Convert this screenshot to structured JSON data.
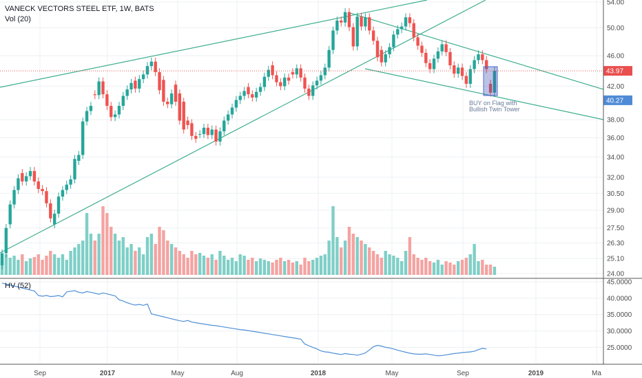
{
  "title": "VANECK VECTORS STEEL ETF, 1W, BATS",
  "vol_label": "Vol (20)",
  "hv_label": "HV (52)",
  "annotation": [
    "BUY on Flag with",
    "Bullish Twin Tower"
  ],
  "price_tag": "43.97",
  "target_tag": "40.27",
  "colors": {
    "up": "#26a69a",
    "down": "#ef5350",
    "vol_up": "#7fcfc7",
    "vol_down": "#f4a3a1",
    "trend": "#3fae8f",
    "hv": "#4e8fd6",
    "price_line": "#e94f4f",
    "target_box": "#4f8ad6"
  },
  "chart_data": [
    {
      "type": "candlestick",
      "title": "VANECK VECTORS STEEL ETF, 1W, BATS",
      "y_axis_ticks": [
        "54.00",
        "50.00",
        "46.00",
        "42.00",
        "38.00",
        "36.00",
        "34.00",
        "32.00",
        "30.50",
        "29.00",
        "27.50",
        "26.30",
        "25.10",
        "24.00"
      ],
      "x_axis_ticks": [
        "Sep",
        "2017",
        "May",
        "Aug",
        "2018",
        "May",
        "Sep",
        "2019",
        "Ma"
      ],
      "ylim": [
        24.0,
        54.0
      ],
      "scale": "log",
      "grid": true,
      "last_price": 43.97,
      "target_price": 40.27,
      "candles_close": [
        25.5,
        27.5,
        29.5,
        30.8,
        31.9,
        31.6,
        32.1,
        32.6,
        31.6,
        30.9,
        30.7,
        29.6,
        28.3,
        28.7,
        30.2,
        30.8,
        31.3,
        31.8,
        33.8,
        34.2,
        37.8,
        39.0,
        39.6,
        40.9,
        42.6,
        41.0,
        39.6,
        38.3,
        38.6,
        39.6,
        40.8,
        41.6,
        42.4,
        41.7,
        42.9,
        43.5,
        44.6,
        45.2,
        43.8,
        41.5,
        40.1,
        39.8,
        41.1,
        40.1,
        37.9,
        36.9,
        37.4,
        36.2,
        35.9,
        36.4,
        37.1,
        36.3,
        36.9,
        35.6,
        36.7,
        37.9,
        38.6,
        39.4,
        40.3,
        40.8,
        41.4,
        41.0,
        40.6,
        41.3,
        41.9,
        43.2,
        44.1,
        43.4,
        42.5,
        42.0,
        43.1,
        42.7,
        43.5,
        44.3,
        43.1,
        41.7,
        40.8,
        42.1,
        42.7,
        43.4,
        44.4,
        46.8,
        49.6,
        51.1,
        50.8,
        52.4,
        50.1,
        47.3,
        51.7,
        50.2,
        51.6,
        49.6,
        48.1,
        45.8,
        45.1,
        46.2,
        47.2,
        49.0,
        49.8,
        50.2,
        51.6,
        50.7,
        48.6,
        47.4,
        46.4,
        45.0,
        44.2,
        45.6,
        46.6,
        47.6,
        46.5,
        44.7,
        43.6,
        44.4,
        43.3,
        42.3,
        44.2,
        45.4,
        46.2,
        45.4,
        44.2,
        41.2,
        43.97
      ],
      "candles_open": [
        24.6,
        25.5,
        27.8,
        29.5,
        30.8,
        32.4,
        31.6,
        32.1,
        32.6,
        31.6,
        30.9,
        30.7,
        29.6,
        27.8,
        28.7,
        30.2,
        30.8,
        31.3,
        31.8,
        33.6,
        34.2,
        37.8,
        39.0,
        41.0,
        40.9,
        42.6,
        41.0,
        39.6,
        38.3,
        38.6,
        39.6,
        40.8,
        41.6,
        42.7,
        41.7,
        42.9,
        43.5,
        44.6,
        45.2,
        43.8,
        42.8,
        40.1,
        39.8,
        42.2,
        41.1,
        40.1,
        37.9,
        37.6,
        36.2,
        36.4,
        36.4,
        37.1,
        36.3,
        36.9,
        35.6,
        36.7,
        37.9,
        38.6,
        39.4,
        40.3,
        40.8,
        41.9,
        41.0,
        40.6,
        41.3,
        41.9,
        43.2,
        44.7,
        43.4,
        42.5,
        42.0,
        43.1,
        43.8,
        43.5,
        44.3,
        43.1,
        41.7,
        40.8,
        42.1,
        42.7,
        43.4,
        44.4,
        46.8,
        49.6,
        51.1,
        50.8,
        52.4,
        50.1,
        47.3,
        51.7,
        50.2,
        51.6,
        49.6,
        48.1,
        46.8,
        45.1,
        46.2,
        47.2,
        49.0,
        49.8,
        50.2,
        51.6,
        50.7,
        48.6,
        47.4,
        46.4,
        45.0,
        44.2,
        45.6,
        46.6,
        47.6,
        46.5,
        44.7,
        43.6,
        44.4,
        43.3,
        42.3,
        44.2,
        45.4,
        46.2,
        45.4,
        42.3,
        41.2
      ],
      "volume_relative": [
        0.2,
        0.3,
        0.25,
        0.28,
        0.22,
        0.3,
        0.2,
        0.24,
        0.26,
        0.3,
        0.22,
        0.28,
        0.35,
        0.3,
        0.25,
        0.3,
        0.22,
        0.35,
        0.4,
        0.45,
        0.5,
        0.9,
        0.6,
        0.5,
        0.6,
        1.0,
        0.9,
        0.7,
        0.6,
        0.5,
        0.55,
        0.4,
        0.45,
        0.35,
        0.4,
        0.3,
        0.55,
        0.6,
        0.45,
        0.7,
        0.65,
        0.5,
        0.45,
        0.4,
        0.35,
        0.3,
        0.25,
        0.35,
        0.3,
        0.32,
        0.28,
        0.25,
        0.3,
        0.22,
        0.35,
        0.28,
        0.22,
        0.25,
        0.2,
        0.3,
        0.28,
        0.22,
        0.25,
        0.2,
        0.24,
        0.22,
        0.2,
        0.18,
        0.22,
        0.25,
        0.2,
        0.22,
        0.18,
        0.2,
        0.15,
        0.25,
        0.2,
        0.22,
        0.25,
        0.28,
        0.3,
        0.5,
        1.0,
        0.55,
        0.4,
        0.5,
        0.7,
        0.6,
        0.55,
        0.5,
        0.45,
        0.4,
        0.35,
        0.3,
        0.25,
        0.35,
        0.3,
        0.28,
        0.25,
        0.2,
        0.35,
        0.55,
        0.3,
        0.25,
        0.22,
        0.25,
        0.2,
        0.18,
        0.22,
        0.15,
        0.2,
        0.18,
        0.15,
        0.2,
        0.22,
        0.25,
        0.3,
        0.45,
        0.2,
        0.22,
        0.15,
        0.15,
        0.12
      ]
    },
    {
      "type": "line",
      "title": "HV (52)",
      "y_axis_ticks": [
        "45.0000",
        "40.0000",
        "35.0000",
        "30.0000",
        "25.0000"
      ],
      "ylim": [
        21.3,
        45.0
      ],
      "values": [
        44.6,
        44.3,
        44.0,
        43.7,
        43.4,
        43.1,
        42.8,
        42.5,
        42.2,
        40.8,
        40.6,
        40.8,
        40.5,
        40.6,
        40.8,
        40.4,
        41.9,
        42.1,
        42.3,
        41.8,
        41.6,
        42.0,
        41.8,
        41.5,
        41.2,
        41.6,
        41.3,
        41.0,
        40.7,
        39.5,
        39.1,
        38.6,
        38.2,
        37.9,
        38.1,
        37.8,
        38.2,
        35.2,
        34.9,
        34.6,
        34.3,
        34.0,
        33.7,
        33.4,
        33.1,
        32.9,
        33.2,
        32.7,
        32.5,
        32.3,
        32.1,
        31.9,
        31.7,
        31.6,
        31.4,
        31.2,
        31.0,
        30.8,
        30.6,
        30.4,
        30.3,
        30.1,
        29.9,
        29.7,
        29.5,
        29.3,
        29.1,
        28.9,
        28.7,
        28.5,
        28.3,
        28.1,
        27.9,
        27.7,
        27.5,
        26.0,
        25.5,
        25.0,
        24.5,
        23.9,
        23.6,
        23.5,
        23.2,
        23.0,
        22.8,
        23.1,
        22.9,
        22.8,
        22.6,
        22.9,
        23.3,
        24.2,
        25.2,
        25.6,
        25.4,
        25.0,
        24.8,
        24.5,
        24.1,
        23.8,
        23.5,
        23.2,
        23.0,
        22.9,
        22.9,
        23.0,
        22.8,
        22.6,
        22.4,
        22.5,
        22.7,
        22.9,
        23.1,
        23.2,
        23.4,
        23.5,
        23.6,
        23.8,
        24.3,
        24.7,
        24.5
      ]
    }
  ]
}
